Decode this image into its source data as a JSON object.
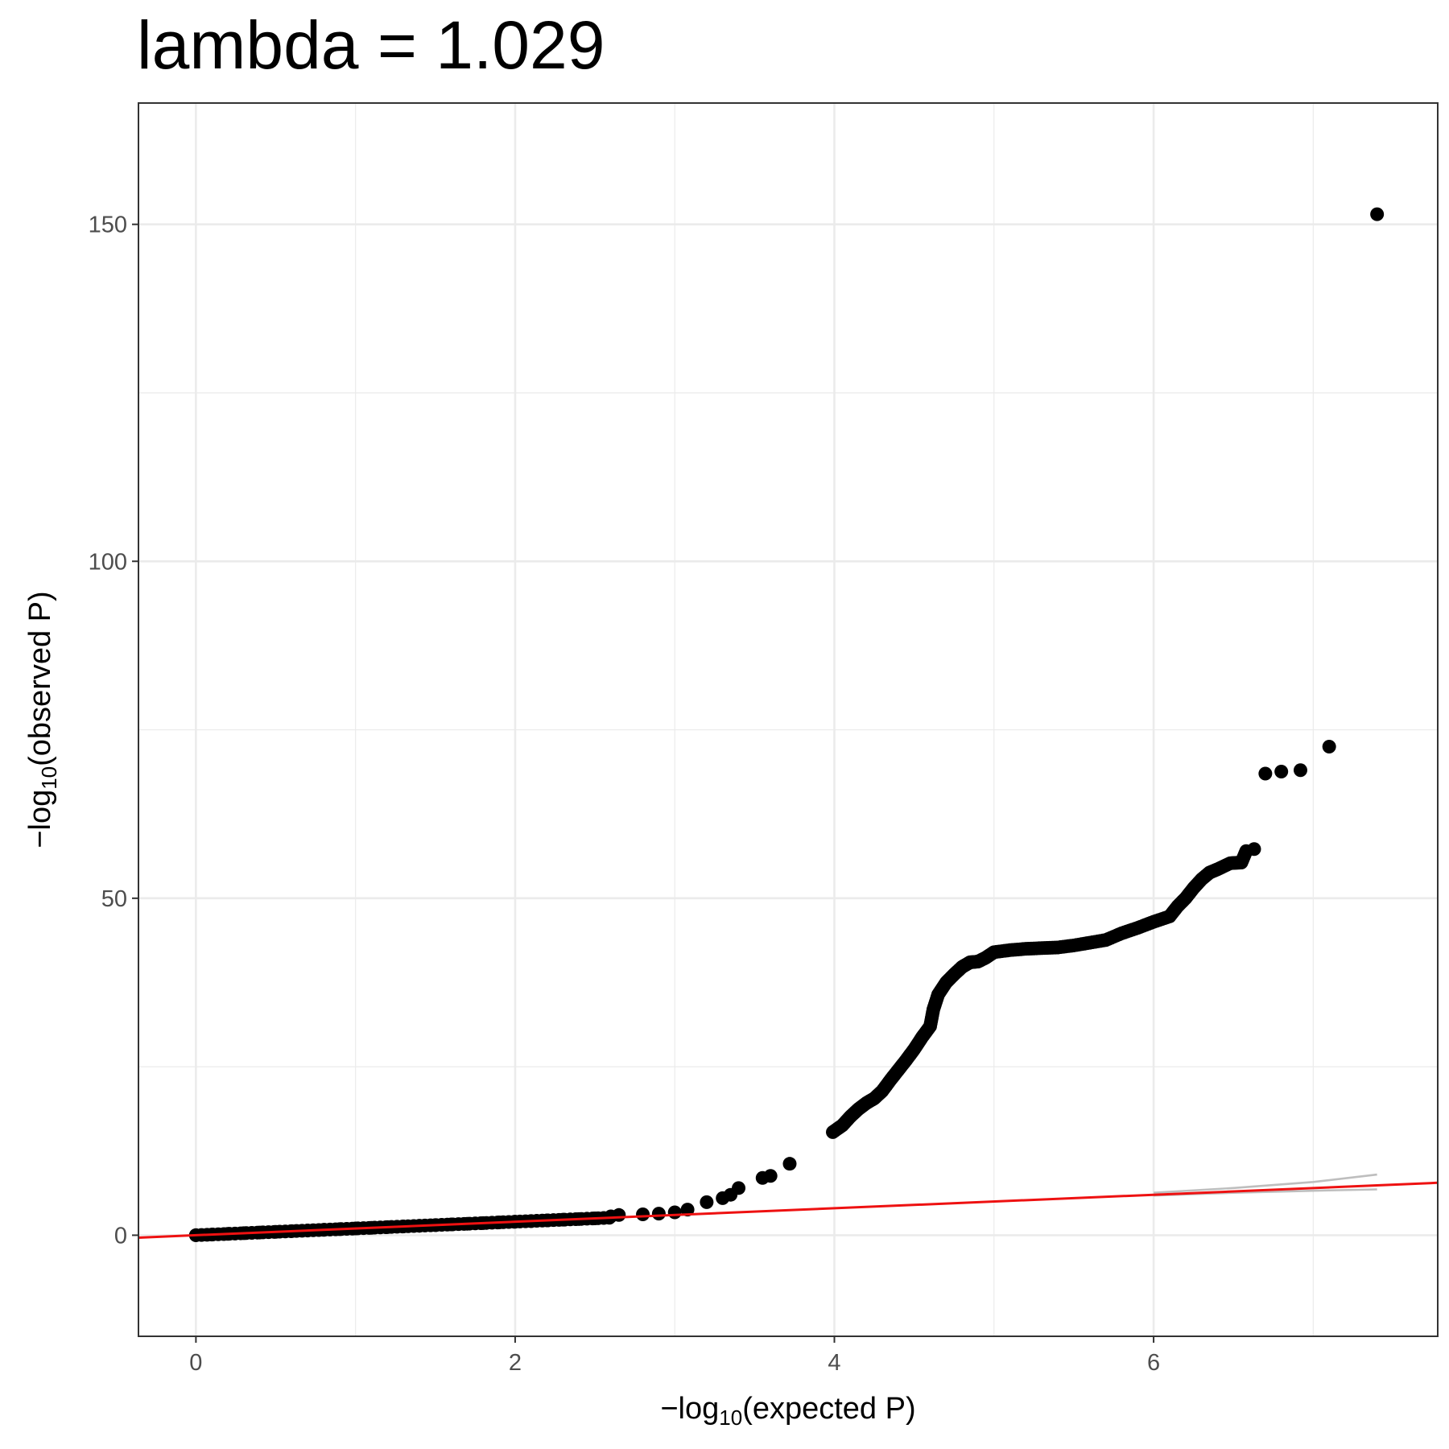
{
  "chart_data": {
    "type": "scatter",
    "title": "lambda = 1.029",
    "xlabel": {
      "prefix": "−log",
      "sub": "10",
      "suffix": "(expected P)"
    },
    "ylabel": {
      "prefix": "−log",
      "sub": "10",
      "suffix": "(observed P)"
    },
    "xlim": [
      -0.36,
      7.78
    ],
    "ylim": [
      -15,
      168
    ],
    "x_ticks": [
      0,
      2,
      4,
      6
    ],
    "y_ticks": [
      0,
      50,
      100,
      150
    ],
    "x_tick_labels": [
      "0",
      "2",
      "4",
      "6"
    ],
    "y_tick_labels": [
      "0",
      "50",
      "100",
      "150"
    ],
    "grid": true,
    "point_color": "#000000",
    "reference_line": {
      "color": "#ee1111",
      "intercept": 0,
      "slope": 1
    },
    "confidence_band_color": "#bebebe",
    "confidence_band": {
      "upper": [
        [
          6,
          6.3
        ],
        [
          6.5,
          7.0
        ],
        [
          7.0,
          7.9
        ],
        [
          7.4,
          9.0
        ]
      ],
      "lower": [
        [
          6,
          5.9
        ],
        [
          6.5,
          6.3
        ],
        [
          7.0,
          6.6
        ],
        [
          7.4,
          6.8
        ]
      ]
    },
    "points": [
      [
        0.0,
        0.0
      ],
      [
        0.1,
        0.1
      ],
      [
        0.2,
        0.2
      ],
      [
        0.3,
        0.3
      ],
      [
        0.4,
        0.4
      ],
      [
        0.5,
        0.5
      ],
      [
        0.6,
        0.6
      ],
      [
        0.7,
        0.7
      ],
      [
        0.8,
        0.8
      ],
      [
        0.9,
        0.9
      ],
      [
        1.0,
        1.0
      ],
      [
        1.1,
        1.1
      ],
      [
        1.2,
        1.2
      ],
      [
        1.3,
        1.3
      ],
      [
        1.4,
        1.4
      ],
      [
        1.5,
        1.5
      ],
      [
        1.6,
        1.6
      ],
      [
        1.7,
        1.7
      ],
      [
        1.8,
        1.8
      ],
      [
        1.9,
        1.9
      ],
      [
        2.0,
        2.0
      ],
      [
        2.1,
        2.1
      ],
      [
        2.2,
        2.2
      ],
      [
        2.3,
        2.3
      ],
      [
        2.4,
        2.4
      ],
      [
        2.5,
        2.5
      ],
      [
        2.6,
        2.8
      ],
      [
        2.65,
        3.0
      ],
      [
        2.8,
        3.1
      ],
      [
        2.9,
        3.2
      ],
      [
        3.0,
        3.4
      ],
      [
        3.08,
        3.8
      ],
      [
        3.2,
        4.9
      ],
      [
        3.3,
        5.5
      ],
      [
        3.35,
        6.0
      ],
      [
        3.4,
        7.0
      ],
      [
        3.55,
        8.5
      ],
      [
        3.6,
        8.8
      ],
      [
        3.72,
        10.6
      ],
      [
        3.99,
        15.3
      ],
      [
        4.05,
        16.3
      ],
      [
        4.1,
        17.6
      ],
      [
        4.15,
        18.7
      ],
      [
        4.2,
        19.6
      ],
      [
        4.25,
        20.3
      ],
      [
        4.3,
        21.4
      ],
      [
        4.35,
        23.0
      ],
      [
        4.4,
        24.5
      ],
      [
        4.45,
        26.0
      ],
      [
        4.5,
        27.6
      ],
      [
        4.55,
        29.4
      ],
      [
        4.6,
        31.0
      ],
      [
        4.62,
        33.5
      ],
      [
        4.65,
        35.7
      ],
      [
        4.7,
        37.5
      ],
      [
        4.75,
        38.7
      ],
      [
        4.8,
        39.8
      ],
      [
        4.85,
        40.5
      ],
      [
        4.9,
        40.6
      ],
      [
        4.95,
        41.2
      ],
      [
        5.0,
        42.0
      ],
      [
        5.1,
        42.3
      ],
      [
        5.2,
        42.5
      ],
      [
        5.3,
        42.6
      ],
      [
        5.4,
        42.7
      ],
      [
        5.5,
        43.0
      ],
      [
        5.6,
        43.4
      ],
      [
        5.7,
        43.8
      ],
      [
        5.8,
        44.8
      ],
      [
        5.9,
        45.6
      ],
      [
        6.0,
        46.5
      ],
      [
        6.1,
        47.3
      ],
      [
        6.15,
        48.8
      ],
      [
        6.2,
        50.0
      ],
      [
        6.25,
        51.5
      ],
      [
        6.3,
        52.8
      ],
      [
        6.35,
        53.8
      ],
      [
        6.4,
        54.3
      ],
      [
        6.48,
        55.2
      ],
      [
        6.55,
        55.3
      ],
      [
        6.58,
        57.0
      ],
      [
        6.63,
        57.3
      ],
      [
        6.7,
        68.5
      ],
      [
        6.8,
        68.8
      ],
      [
        6.92,
        69.0
      ],
      [
        7.1,
        72.5
      ],
      [
        7.4,
        151.5
      ]
    ]
  }
}
